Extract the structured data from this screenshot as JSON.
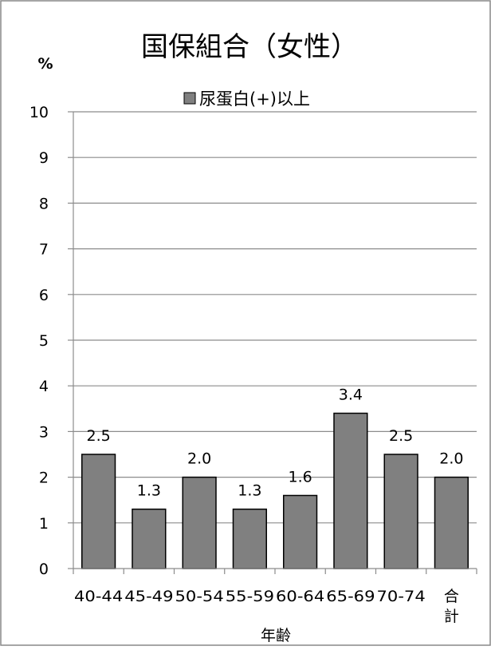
{
  "chart_data": {
    "type": "bar",
    "title": "国保組合（女性）",
    "unit_label": "%",
    "xlabel": "年齢",
    "ylabel": "",
    "ylim": [
      0,
      10
    ],
    "yticks": [
      0,
      1,
      2,
      3,
      4,
      5,
      6,
      7,
      8,
      9,
      10
    ],
    "grid": true,
    "legend_position": "top-center",
    "categories": [
      "40-44",
      "45-49",
      "50-54",
      "55-59",
      "60-64",
      "65-69",
      "70-74",
      "合計"
    ],
    "series": [
      {
        "name": "尿蛋白(+)以上",
        "values": [
          2.5,
          1.3,
          2.0,
          1.3,
          1.6,
          3.4,
          2.5,
          2.0
        ],
        "labels": [
          "2.5",
          "1.3",
          "2.0",
          "1.3",
          "1.6",
          "3.4",
          "2.5",
          "2.0"
        ],
        "color": "#808080"
      }
    ]
  }
}
